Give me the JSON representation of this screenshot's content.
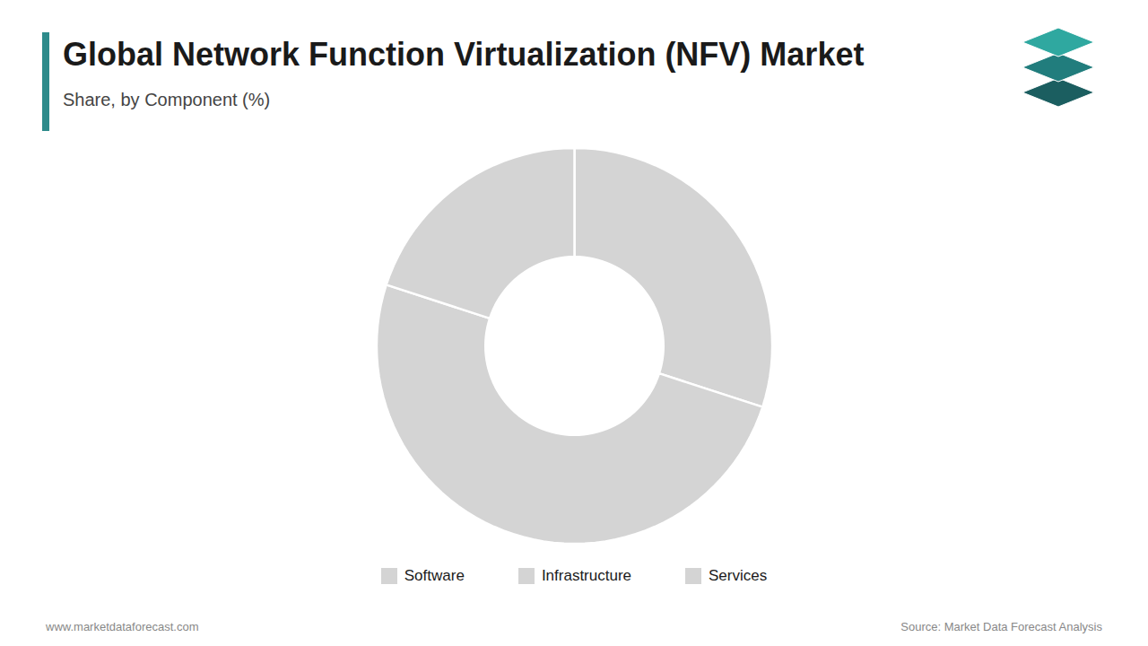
{
  "chart_data": {
    "type": "donut",
    "title": "Global Network Function Virtualization (NFV) Market",
    "subtitle": "Share, by Component (%)",
    "categories": [
      "Software",
      "Infrastructure",
      "Services"
    ],
    "values": [
      30,
      50,
      20
    ],
    "colors": [
      "#d4d4d4",
      "#d4d4d4",
      "#d4d4d4"
    ],
    "legend": "bottom",
    "tick_labels": false,
    "annotations": [
      "www.marketdataforecast.com",
      "Source: Market Data Forecast Analysis"
    ]
  }
}
